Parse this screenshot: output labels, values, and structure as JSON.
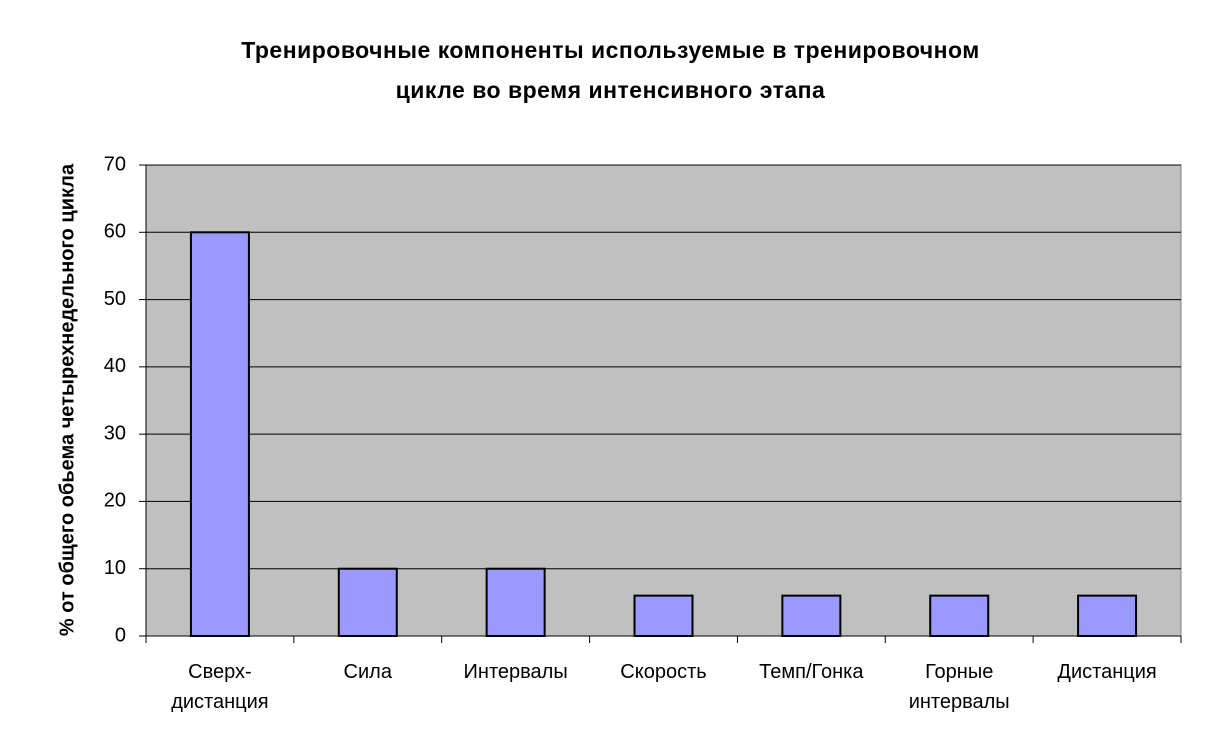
{
  "chart_data": {
    "type": "bar",
    "title": "Тренировочные компоненты используемые в тренировочном\nцикле во время интенсивного этапа",
    "y_label": "% от общего обьема четырехнедельного цикла",
    "categories": [
      "Сверх-\nдистанция",
      "Сила",
      "Интервалы",
      "Скорость",
      "Темп/Гонка",
      "Горные\nинтервалы",
      "Дистанция"
    ],
    "values": [
      60,
      10,
      10,
      6,
      6,
      6,
      6
    ],
    "color": "#9999ff",
    "ylim": [
      0,
      70
    ],
    "yticks": [
      0,
      10,
      20,
      30,
      40,
      50,
      60,
      70
    ],
    "grid": true
  }
}
